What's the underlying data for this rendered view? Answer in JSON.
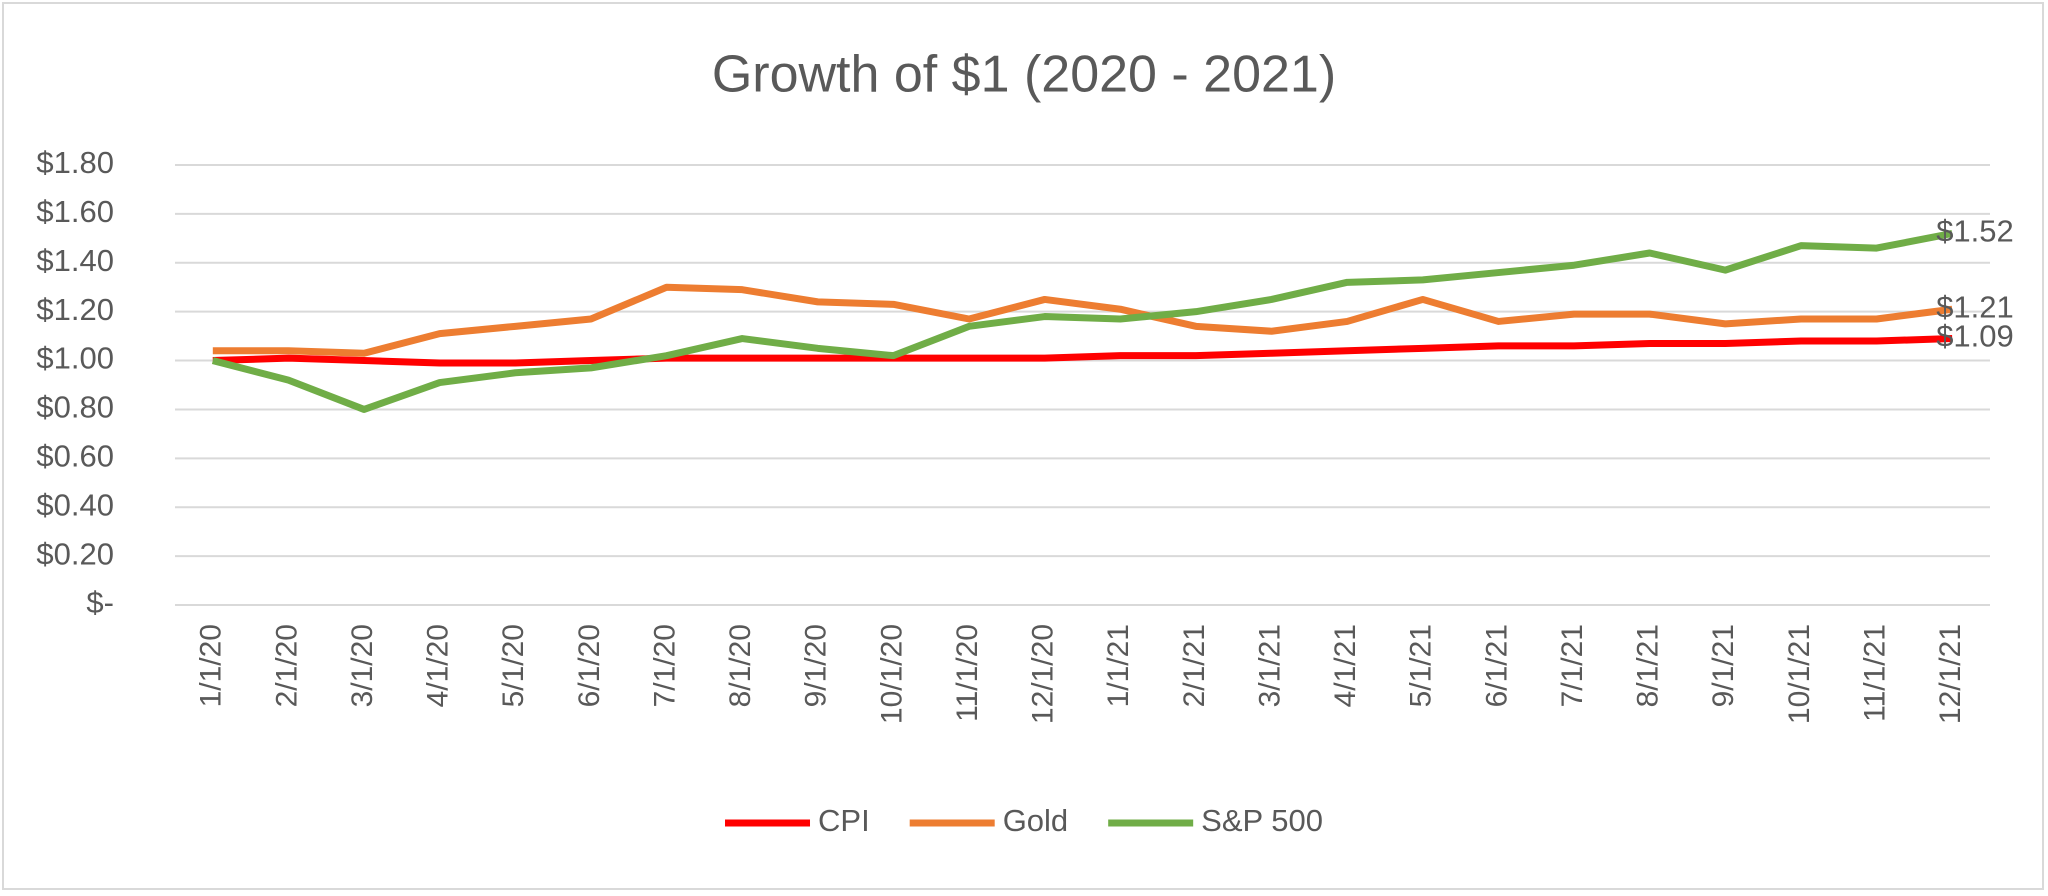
{
  "chart_data": {
    "type": "line",
    "title": "Growth of $1 (2020 - 2021)",
    "categories": [
      "1/1/20",
      "2/1/20",
      "3/1/20",
      "4/1/20",
      "5/1/20",
      "6/1/20",
      "7/1/20",
      "8/1/20",
      "9/1/20",
      "10/1/20",
      "11/1/20",
      "12/1/20",
      "1/1/21",
      "2/1/21",
      "3/1/21",
      "4/1/21",
      "5/1/21",
      "6/1/21",
      "7/1/21",
      "8/1/21",
      "9/1/21",
      "10/1/21",
      "11/1/21",
      "12/1/21"
    ],
    "series": [
      {
        "name": "CPI",
        "color": "#ff0000",
        "values": [
          1.0,
          1.01,
          1.0,
          0.99,
          0.99,
          1.0,
          1.01,
          1.01,
          1.01,
          1.01,
          1.01,
          1.01,
          1.02,
          1.02,
          1.03,
          1.04,
          1.05,
          1.06,
          1.06,
          1.07,
          1.07,
          1.08,
          1.08,
          1.09
        ],
        "value_labels": [
          null,
          null,
          null,
          null,
          null,
          null,
          null,
          null,
          null,
          null,
          null,
          null,
          null,
          null,
          null,
          null,
          null,
          null,
          null,
          null,
          null,
          null,
          null,
          "$1.09"
        ]
      },
      {
        "name": "Gold",
        "color": "#ed7d31",
        "values": [
          1.04,
          1.04,
          1.03,
          1.11,
          1.14,
          1.17,
          1.3,
          1.29,
          1.24,
          1.23,
          1.17,
          1.25,
          1.21,
          1.14,
          1.12,
          1.16,
          1.25,
          1.16,
          1.19,
          1.19,
          1.15,
          1.17,
          1.17,
          1.21
        ],
        "value_labels": [
          null,
          null,
          null,
          null,
          null,
          null,
          null,
          null,
          null,
          null,
          null,
          null,
          null,
          null,
          null,
          null,
          null,
          null,
          null,
          null,
          null,
          null,
          null,
          "$1.21"
        ]
      },
      {
        "name": "S&P 500",
        "color": "#70ad47",
        "values": [
          1.0,
          0.92,
          0.8,
          0.91,
          0.95,
          0.97,
          1.02,
          1.09,
          1.05,
          1.02,
          1.14,
          1.18,
          1.17,
          1.2,
          1.25,
          1.32,
          1.33,
          1.36,
          1.39,
          1.44,
          1.37,
          1.47,
          1.46,
          1.52
        ],
        "value_labels": [
          null,
          null,
          null,
          null,
          null,
          null,
          null,
          null,
          null,
          null,
          null,
          null,
          null,
          null,
          null,
          null,
          null,
          null,
          null,
          null,
          null,
          null,
          null,
          "$1.52"
        ]
      }
    ],
    "ylim": [
      0,
      1.8
    ],
    "yticks": [
      {
        "value": 0,
        "label": "$-"
      },
      {
        "value": 0.2,
        "label": "$0.20"
      },
      {
        "value": 0.4,
        "label": "$0.40"
      },
      {
        "value": 0.6,
        "label": "$0.60"
      },
      {
        "value": 0.8,
        "label": "$0.80"
      },
      {
        "value": 1.0,
        "label": "$1.00"
      },
      {
        "value": 1.2,
        "label": "$1.20"
      },
      {
        "value": 1.4,
        "label": "$1.40"
      },
      {
        "value": 1.6,
        "label": "$1.60"
      },
      {
        "value": 1.8,
        "label": "$1.80"
      }
    ],
    "grid": true,
    "legend": "bottom"
  }
}
